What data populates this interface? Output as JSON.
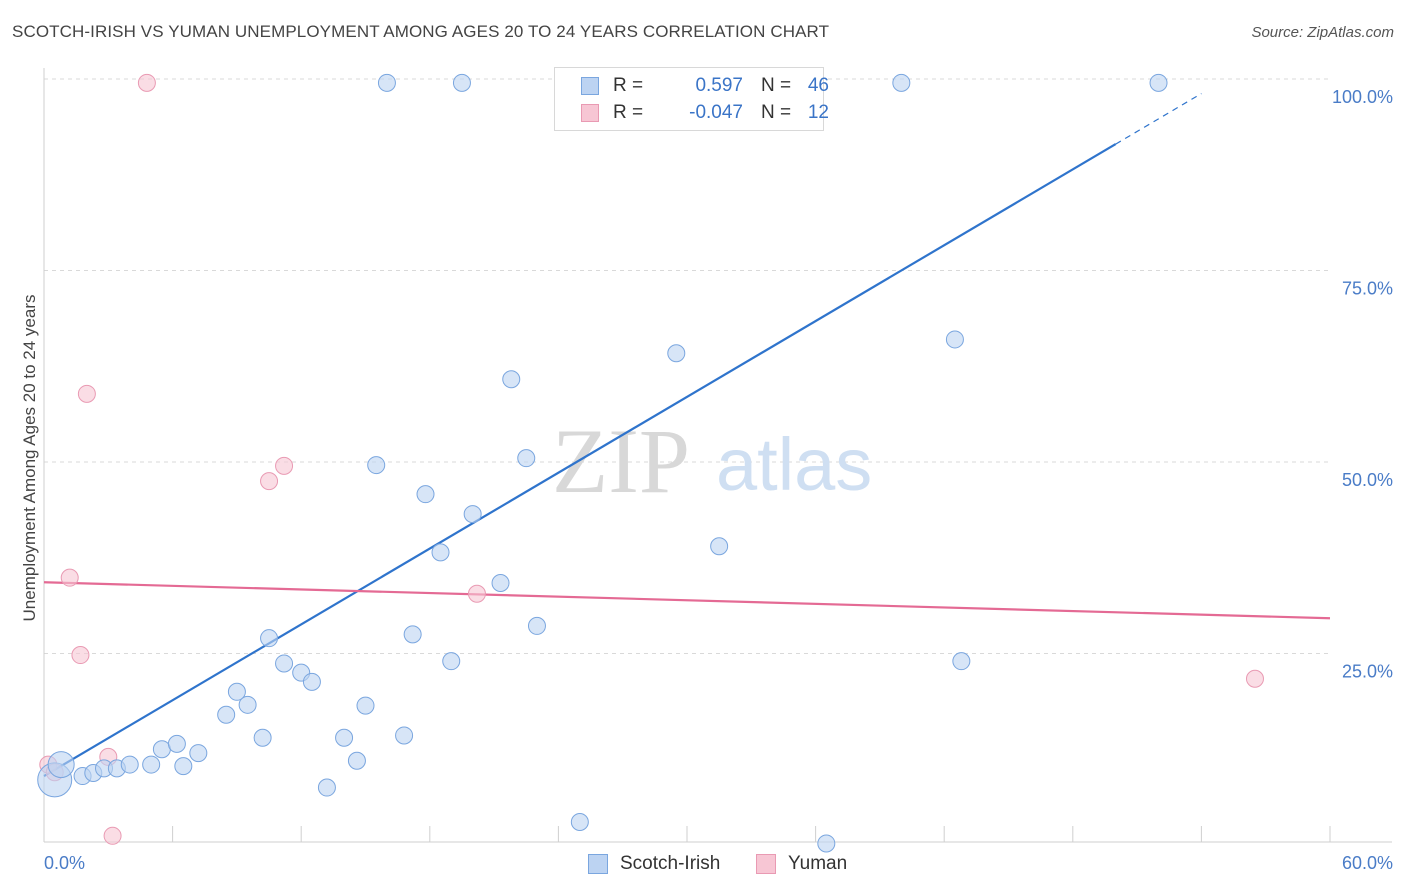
{
  "header": {
    "title": "SCOTCH-IRISH VS YUMAN UNEMPLOYMENT AMONG AGES 20 TO 24 YEARS CORRELATION CHART",
    "source": "Source: ZipAtlas.com"
  },
  "watermark": {
    "zip": "ZIP",
    "atlas": "atlas"
  },
  "legend": {
    "r_label": "R =",
    "n_label": "N =",
    "rows": [
      {
        "r_value": "0.597",
        "n_value": "46"
      },
      {
        "r_value": "-0.047",
        "n_value": "12"
      }
    ]
  },
  "colors": {
    "scotch_fill": "#bcd3f2",
    "scotch_stroke": "#7aa6df",
    "scotch_line": "#2f74cc",
    "yuman_fill": "#f7c6d4",
    "yuman_stroke": "#e99ab3",
    "yuman_line": "#e46a94",
    "tick_text": "#4a7cc7",
    "grid": "#d9d9d9"
  },
  "chart_data": {
    "type": "scatter",
    "title": "SCOTCH-IRISH VS YUMAN UNEMPLOYMENT AMONG AGES 20 TO 24 YEARS CORRELATION CHART",
    "xlabel": "",
    "ylabel": "Unemployment Among Ages 20 to 24 years",
    "xlim": [
      0,
      60
    ],
    "ylim": [
      0,
      102
    ],
    "x_tick_labels": [
      "0.0%",
      "60.0%"
    ],
    "y_ticks": [
      {
        "value": 25,
        "label": "25.0%"
      },
      {
        "value": 50,
        "label": "50.0%"
      },
      {
        "value": 75,
        "label": "75.0%"
      },
      {
        "value": 100,
        "label": "100.0%"
      }
    ],
    "legend_position": "bottom-center",
    "series": [
      {
        "name": "Scotch-Irish",
        "r": 0.597,
        "n": 46,
        "trend": {
          "x0": 0,
          "y0": 9.0,
          "x1": 50,
          "y1": 91.5,
          "dash_x1": 54,
          "dash_y1": 98.1
        },
        "points": [
          {
            "x": 0.5,
            "y": 8.5,
            "size": 3
          },
          {
            "x": 0.8,
            "y": 10.5,
            "size": 2
          },
          {
            "x": 1.8,
            "y": 9.0,
            "size": 1
          },
          {
            "x": 2.3,
            "y": 9.4,
            "size": 1
          },
          {
            "x": 2.8,
            "y": 10.0,
            "size": 1
          },
          {
            "x": 3.4,
            "y": 10.0,
            "size": 1
          },
          {
            "x": 4.0,
            "y": 10.5,
            "size": 1
          },
          {
            "x": 5.0,
            "y": 10.5,
            "size": 1
          },
          {
            "x": 5.5,
            "y": 12.5,
            "size": 1
          },
          {
            "x": 6.2,
            "y": 13.2,
            "size": 1
          },
          {
            "x": 6.5,
            "y": 10.3,
            "size": 1
          },
          {
            "x": 7.2,
            "y": 12.0,
            "size": 1
          },
          {
            "x": 8.5,
            "y": 17.0,
            "size": 1
          },
          {
            "x": 9.0,
            "y": 20.0,
            "size": 1
          },
          {
            "x": 9.5,
            "y": 18.3,
            "size": 1
          },
          {
            "x": 10.2,
            "y": 14.0,
            "size": 1
          },
          {
            "x": 10.5,
            "y": 27.0,
            "size": 1
          },
          {
            "x": 11.2,
            "y": 23.7,
            "size": 1
          },
          {
            "x": 12.0,
            "y": 22.5,
            "size": 1
          },
          {
            "x": 12.5,
            "y": 21.3,
            "size": 1
          },
          {
            "x": 13.2,
            "y": 7.5,
            "size": 1
          },
          {
            "x": 14.0,
            "y": 14.0,
            "size": 1
          },
          {
            "x": 14.6,
            "y": 11.0,
            "size": 1
          },
          {
            "x": 15.0,
            "y": 18.2,
            "size": 1
          },
          {
            "x": 15.5,
            "y": 49.6,
            "size": 1
          },
          {
            "x": 16.0,
            "y": 99.5,
            "size": 1
          },
          {
            "x": 16.8,
            "y": 14.3,
            "size": 1
          },
          {
            "x": 17.2,
            "y": 27.5,
            "size": 1
          },
          {
            "x": 17.8,
            "y": 45.8,
            "size": 1
          },
          {
            "x": 18.5,
            "y": 38.2,
            "size": 1
          },
          {
            "x": 19.0,
            "y": 24.0,
            "size": 1
          },
          {
            "x": 19.5,
            "y": 99.5,
            "size": 1
          },
          {
            "x": 20.0,
            "y": 43.2,
            "size": 1
          },
          {
            "x": 21.3,
            "y": 34.2,
            "size": 1
          },
          {
            "x": 21.8,
            "y": 60.8,
            "size": 1
          },
          {
            "x": 22.5,
            "y": 50.5,
            "size": 1
          },
          {
            "x": 23.0,
            "y": 28.6,
            "size": 1
          },
          {
            "x": 24.5,
            "y": 99.5,
            "size": 1
          },
          {
            "x": 25.0,
            "y": 3.0,
            "size": 1
          },
          {
            "x": 29.5,
            "y": 64.2,
            "size": 1
          },
          {
            "x": 31.5,
            "y": 39.0,
            "size": 1
          },
          {
            "x": 36.5,
            "y": 0.2,
            "size": 1
          },
          {
            "x": 40.0,
            "y": 99.5,
            "size": 1
          },
          {
            "x": 42.5,
            "y": 66.0,
            "size": 1
          },
          {
            "x": 42.8,
            "y": 24.0,
            "size": 1
          },
          {
            "x": 52.0,
            "y": 99.5,
            "size": 1
          }
        ]
      },
      {
        "name": "Yuman",
        "r": -0.047,
        "n": 12,
        "trend": {
          "x0": 0,
          "y0": 34.3,
          "x1": 60,
          "y1": 29.6
        },
        "points": [
          {
            "x": 0.2,
            "y": 10.5,
            "size": 1
          },
          {
            "x": 0.5,
            "y": 9.5,
            "size": 1
          },
          {
            "x": 1.2,
            "y": 34.9,
            "size": 1
          },
          {
            "x": 1.7,
            "y": 24.8,
            "size": 1
          },
          {
            "x": 2.0,
            "y": 58.9,
            "size": 1
          },
          {
            "x": 3.0,
            "y": 11.5,
            "size": 1
          },
          {
            "x": 3.2,
            "y": 1.2,
            "size": 1
          },
          {
            "x": 4.8,
            "y": 99.5,
            "size": 1
          },
          {
            "x": 10.5,
            "y": 47.5,
            "size": 1
          },
          {
            "x": 11.2,
            "y": 49.5,
            "size": 1
          },
          {
            "x": 20.2,
            "y": 32.8,
            "size": 1
          },
          {
            "x": 56.5,
            "y": 21.7,
            "size": 1
          }
        ]
      }
    ]
  }
}
